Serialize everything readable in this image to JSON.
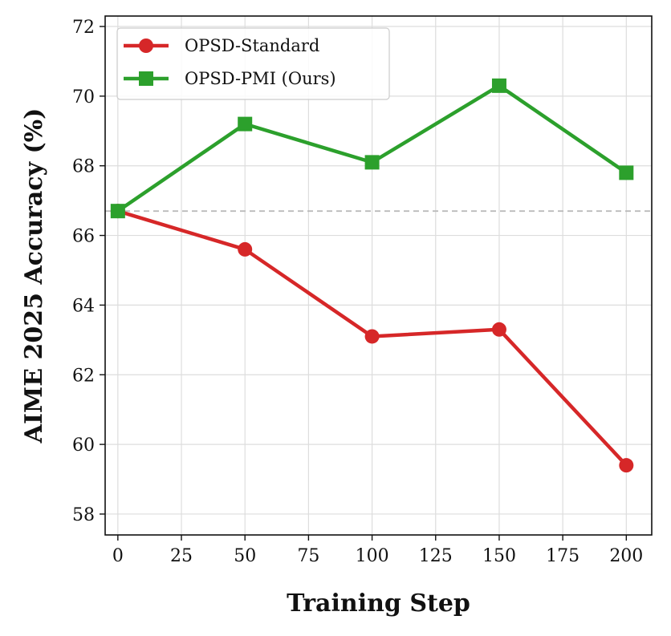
{
  "chart_data": {
    "type": "line",
    "title": "",
    "xlabel": "Training Step",
    "ylabel": "AIME 2025 Accuracy (%)",
    "xlim": [
      -5,
      210
    ],
    "ylim": [
      57.4,
      72.3
    ],
    "xticks": [
      0,
      25,
      50,
      75,
      100,
      125,
      150,
      175,
      200
    ],
    "yticks": [
      58,
      60,
      62,
      64,
      66,
      68,
      70,
      72
    ],
    "grid": true,
    "legend_position": "top-left",
    "reference_line": {
      "y": 66.7,
      "style": "dashed",
      "color": "#bbbbbb"
    },
    "series": [
      {
        "name": "OPSD-Standard",
        "color": "#d62728",
        "marker": "circle",
        "x": [
          0,
          50,
          100,
          150,
          200
        ],
        "y": [
          66.7,
          65.6,
          63.1,
          63.3,
          59.4
        ]
      },
      {
        "name": "OPSD-PMI (Ours)",
        "color": "#2ca02c",
        "marker": "square",
        "x": [
          0,
          50,
          100,
          150,
          200
        ],
        "y": [
          66.7,
          69.2,
          68.1,
          70.3,
          67.8
        ]
      }
    ]
  }
}
